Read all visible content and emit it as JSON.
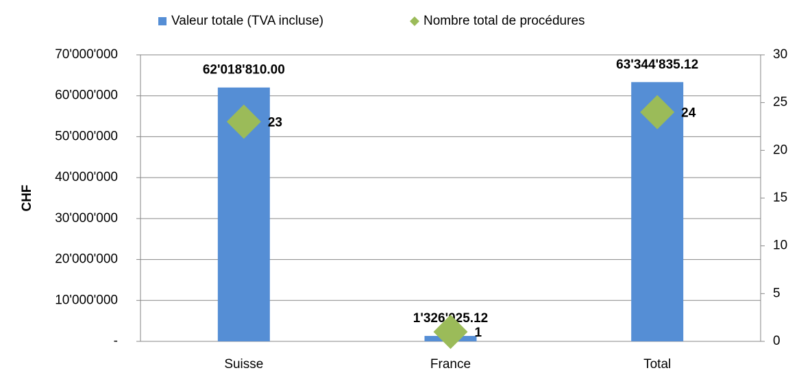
{
  "chart_data": {
    "type": "bar",
    "y_label": "CHF",
    "categories": [
      "Suisse",
      "France",
      "Total"
    ],
    "series": [
      {
        "name": "Valeur totale (TVA incluse)",
        "color": "#558ed5",
        "values": [
          62018810.0,
          1326025.12,
          63344835.12
        ],
        "value_labels": [
          "62'018'810.00",
          "1'326'025.12",
          "63'344'835.12"
        ]
      },
      {
        "name": "Nombre total de procédures",
        "color": "#9bbb59",
        "marker": "diamond",
        "axis": "y2",
        "values": [
          23,
          1,
          24
        ]
      }
    ],
    "ylim": [
      0,
      70000000
    ],
    "yticks": [
      {
        "value": 0,
        "label": "-"
      },
      {
        "value": 10000000,
        "label": "10'000'000"
      },
      {
        "value": 20000000,
        "label": "20'000'000"
      },
      {
        "value": 30000000,
        "label": "30'000'000"
      },
      {
        "value": 40000000,
        "label": "40'000'000"
      },
      {
        "value": 50000000,
        "label": "50'000'000"
      },
      {
        "value": 60000000,
        "label": "60'000'000"
      },
      {
        "value": 70000000,
        "label": "70'000'000"
      }
    ],
    "y2lim": [
      0,
      30
    ],
    "y2ticks": [
      0,
      5,
      10,
      15,
      20,
      25,
      30
    ],
    "grid": true,
    "legend": "top"
  }
}
